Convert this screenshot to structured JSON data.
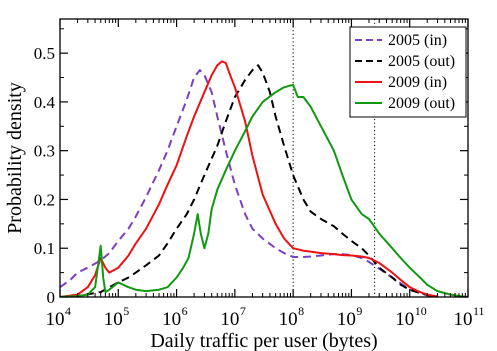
{
  "chart_data": {
    "type": "line",
    "xlabel": "Daily traffic per user (bytes)",
    "ylabel": "Probability density",
    "x_scale": "log10",
    "xlim": [
      10000,
      100000000000
    ],
    "ylim": [
      0,
      0.57
    ],
    "x_ticks": [
      {
        "value": 10000,
        "base": "10",
        "exp": "4"
      },
      {
        "value": 100000,
        "base": "10",
        "exp": "5"
      },
      {
        "value": 1000000,
        "base": "10",
        "exp": "6"
      },
      {
        "value": 10000000,
        "base": "10",
        "exp": "7"
      },
      {
        "value": 100000000,
        "base": "10",
        "exp": "8"
      },
      {
        "value": 1000000000,
        "base": "10",
        "exp": "9"
      },
      {
        "value": 10000000000,
        "base": "10",
        "exp": "10"
      },
      {
        "value": 100000000000,
        "base": "10",
        "exp": "11"
      }
    ],
    "y_ticks": [
      {
        "value": 0,
        "label": "0"
      },
      {
        "value": 0.1,
        "label": "0.1"
      },
      {
        "value": 0.2,
        "label": "0.2"
      },
      {
        "value": 0.3,
        "label": "0.3"
      },
      {
        "value": 0.4,
        "label": "0.4"
      },
      {
        "value": 0.5,
        "label": "0.5"
      }
    ],
    "reference_lines": [
      100000000,
      2500000000
    ],
    "legend_position": "top-right",
    "series": [
      {
        "name": "2005 (in)",
        "color": "#7b3fc4",
        "dash": "dashed",
        "x": [
          10000,
          15000,
          20000,
          30000,
          50000,
          70000,
          100000,
          150000,
          200000,
          300000,
          500000,
          700000,
          1000000,
          1500000,
          2000000,
          2500000,
          3000000,
          4000000,
          5000000,
          7000000,
          10000000,
          15000000,
          20000000,
          30000000,
          50000000,
          70000000,
          100000000,
          150000000,
          200000000,
          300000000,
          500000000,
          700000000,
          1000000000,
          1500000000,
          2000000000,
          3000000000,
          5000000000,
          7000000000,
          10000000000,
          15000000000,
          20000000000,
          30000000000
        ],
        "y": [
          0.02,
          0.035,
          0.05,
          0.06,
          0.075,
          0.09,
          0.115,
          0.14,
          0.165,
          0.205,
          0.26,
          0.3,
          0.35,
          0.405,
          0.45,
          0.465,
          0.455,
          0.42,
          0.37,
          0.3,
          0.23,
          0.17,
          0.14,
          0.12,
          0.1,
          0.09,
          0.082,
          0.082,
          0.083,
          0.085,
          0.088,
          0.088,
          0.086,
          0.08,
          0.072,
          0.058,
          0.04,
          0.028,
          0.015,
          0.008,
          0.004,
          0.001
        ]
      },
      {
        "name": "2005 (out)",
        "color": "#000000",
        "dash": "dashed",
        "x": [
          10000,
          20000,
          50000,
          70000,
          100000,
          150000,
          200000,
          300000,
          500000,
          700000,
          1000000,
          1500000,
          2000000,
          3000000,
          5000000,
          7000000,
          10000000,
          15000000,
          20000000,
          25000000,
          30000000,
          40000000,
          50000000,
          70000000,
          100000000,
          150000000,
          200000000,
          300000000,
          500000000,
          700000000,
          1000000000,
          1500000000,
          2000000000,
          3000000000,
          5000000000,
          7000000000,
          10000000000,
          15000000000,
          20000000000,
          30000000000
        ],
        "y": [
          0.0,
          0.002,
          0.01,
          0.02,
          0.03,
          0.04,
          0.05,
          0.065,
          0.085,
          0.11,
          0.14,
          0.17,
          0.2,
          0.25,
          0.31,
          0.36,
          0.41,
          0.445,
          0.465,
          0.475,
          0.46,
          0.42,
          0.37,
          0.31,
          0.25,
          0.2,
          0.175,
          0.16,
          0.145,
          0.13,
          0.115,
          0.1,
          0.085,
          0.06,
          0.04,
          0.025,
          0.015,
          0.008,
          0.004,
          0.001
        ]
      },
      {
        "name": "2009 (in)",
        "color": "#ee1111",
        "dash": "solid",
        "x": [
          10000,
          20000,
          30000,
          40000,
          50000,
          60000,
          70000,
          100000,
          150000,
          200000,
          300000,
          500000,
          700000,
          1000000,
          1500000,
          2000000,
          3000000,
          4000000,
          5000000,
          6000000,
          7000000,
          8000000,
          10000000,
          15000000,
          20000000,
          30000000,
          50000000,
          70000000,
          100000000,
          150000000,
          200000000,
          300000000,
          500000000,
          700000000,
          1000000000,
          1500000000,
          2000000000,
          3000000000,
          5000000000,
          7000000000,
          10000000000,
          15000000000,
          20000000000,
          30000000000
        ],
        "y": [
          0.0,
          0.005,
          0.02,
          0.045,
          0.08,
          0.06,
          0.05,
          0.06,
          0.085,
          0.11,
          0.14,
          0.19,
          0.23,
          0.27,
          0.33,
          0.37,
          0.42,
          0.455,
          0.475,
          0.483,
          0.48,
          0.46,
          0.43,
          0.36,
          0.29,
          0.21,
          0.15,
          0.12,
          0.1,
          0.095,
          0.093,
          0.09,
          0.088,
          0.086,
          0.085,
          0.083,
          0.08,
          0.07,
          0.05,
          0.035,
          0.02,
          0.01,
          0.005,
          0.001
        ]
      },
      {
        "name": "2009 (out)",
        "color": "#119911",
        "dash": "solid",
        "x": [
          10000,
          20000,
          30000,
          40000,
          50000,
          55000,
          60000,
          70000,
          100000,
          150000,
          200000,
          300000,
          500000,
          700000,
          1000000,
          1300000,
          1600000,
          2000000,
          2300000,
          2600000,
          3000000,
          3500000,
          4000000,
          5000000,
          7000000,
          10000000,
          15000000,
          20000000,
          30000000,
          50000000,
          70000000,
          100000000,
          120000000,
          150000000,
          200000000,
          300000000,
          500000000,
          700000000,
          1000000000,
          1500000000,
          2000000000,
          3000000000,
          5000000000,
          7000000000,
          10000000000,
          15000000000,
          20000000000,
          30000000000,
          50000000000,
          70000000000,
          100000000000
        ],
        "y": [
          0.0,
          0.002,
          0.005,
          0.02,
          0.105,
          0.04,
          0.01,
          0.015,
          0.03,
          0.02,
          0.015,
          0.012,
          0.015,
          0.02,
          0.04,
          0.06,
          0.08,
          0.13,
          0.17,
          0.13,
          0.1,
          0.13,
          0.18,
          0.22,
          0.26,
          0.3,
          0.34,
          0.37,
          0.4,
          0.42,
          0.43,
          0.435,
          0.41,
          0.41,
          0.39,
          0.35,
          0.3,
          0.25,
          0.2,
          0.17,
          0.16,
          0.13,
          0.1,
          0.08,
          0.06,
          0.04,
          0.025,
          0.012,
          0.005,
          0.002,
          0.0
        ]
      }
    ]
  }
}
